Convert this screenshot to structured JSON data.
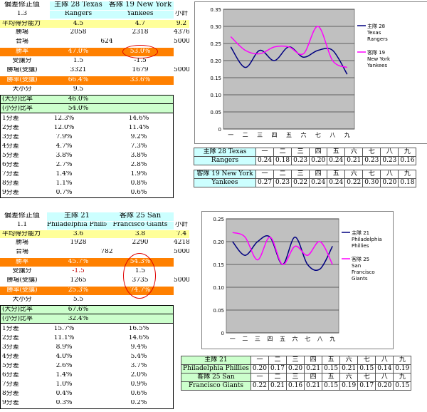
{
  "game1": {
    "header": {
      "label": "偏差修正值",
      "factor": "1.3",
      "home_label": "主隊 28 Texas",
      "home_name": "Rangers",
      "away_label": "客隊 19 New York",
      "away_name": "Yankees",
      "total_label": "小計"
    },
    "ability": {
      "label": "平均得分能力",
      "home": "4.5",
      "away": "4.7",
      "total": "9.2"
    },
    "wins": {
      "label": "勝場",
      "home": "2058",
      "away": "2318",
      "total": "4376"
    },
    "draws": {
      "label": "合場",
      "value": "624",
      "total": "5000"
    },
    "winrate": {
      "label": "勝率",
      "home": "47.0%",
      "away": "53.0%"
    },
    "handicap": {
      "label": "受讓分",
      "home": "1.5",
      "away": "-1.5"
    },
    "hc_wins": {
      "label": "勝場(受讓)",
      "home": "3321",
      "away": "1679",
      "total": "5000"
    },
    "hc_rate": {
      "label": "勝率(受讓)",
      "home": "66.4%",
      "away": "33.6%"
    },
    "ou": {
      "label": "大小分",
      "value": "9.5"
    },
    "over": {
      "label": "(大分)比率",
      "value": "46.0%"
    },
    "under": {
      "label": "(小分)比率",
      "value": "54.0%"
    },
    "diffs": [
      {
        "label": "1分差",
        "home": "12.3%",
        "away": "14.6%"
      },
      {
        "label": "2分差",
        "home": "12.0%",
        "away": "11.4%"
      },
      {
        "label": "3分差",
        "home": "7.9%",
        "away": "9.2%"
      },
      {
        "label": "4分差",
        "home": "4.7%",
        "away": "7.3%"
      },
      {
        "label": "5分差",
        "home": "3.8%",
        "away": "3.8%"
      },
      {
        "label": "6分差",
        "home": "2.7%",
        "away": "2.8%"
      },
      {
        "label": "7分差",
        "home": "1.4%",
        "away": "1.9%"
      },
      {
        "label": "8分差",
        "home": "1.1%",
        "away": "0.8%"
      },
      {
        "label": "9分差",
        "home": "0.7%",
        "away": "0.6%"
      }
    ],
    "innings_table": {
      "innings": [
        "一",
        "二",
        "三",
        "四",
        "五",
        "六",
        "七",
        "八",
        "九"
      ],
      "home_label": "主隊 28 Texas",
      "home_name": "Rangers",
      "home_values": [
        "0.24",
        "0.18",
        "0.23",
        "0.20",
        "0.24",
        "0.21",
        "0.23",
        "0.23",
        "0.16"
      ],
      "away_label": "客隊 19 New York",
      "away_name": "Yankees",
      "away_values": [
        "0.27",
        "0.23",
        "0.22",
        "0.24",
        "0.24",
        "0.22",
        "0.30",
        "0.20",
        "0.18"
      ]
    },
    "chart_data": {
      "type": "line",
      "categories": [
        "一",
        "二",
        "三",
        "四",
        "五",
        "六",
        "七",
        "八",
        "九"
      ],
      "ylim": [
        0,
        0.35
      ],
      "yticks": [
        "0",
        "0.05",
        "0.10",
        "0.15",
        "0.20",
        "0.25",
        "0.30",
        "0.35"
      ],
      "series": [
        {
          "name": "主隊 28 Texas Rangers",
          "legend": [
            "主隊 28",
            "Texas",
            "Rangers"
          ],
          "color": "#000080",
          "values": [
            0.24,
            0.18,
            0.23,
            0.2,
            0.24,
            0.21,
            0.23,
            0.23,
            0.16
          ]
        },
        {
          "name": "客隊 19 New York Yankees",
          "legend": [
            "客隊 19",
            "New York",
            "Yankees"
          ],
          "color": "#ff00ff",
          "values": [
            0.27,
            0.23,
            0.22,
            0.24,
            0.24,
            0.22,
            0.3,
            0.2,
            0.18
          ]
        }
      ]
    }
  },
  "game2": {
    "header": {
      "label": "偏差修正值",
      "factor": "1.1",
      "home_label": "主隊 21",
      "home_name": "Philadelphia Phillies",
      "away_label": "客隊 25 San",
      "away_name": "Francisco Giants",
      "total_label": "小計"
    },
    "ability": {
      "label": "平均得分能力",
      "home": "3.6",
      "away": "3.8",
      "total": "7.4"
    },
    "wins": {
      "label": "勝場",
      "home": "1928",
      "away": "2290",
      "total": "4218"
    },
    "draws": {
      "label": "合場",
      "value": "782",
      "total": "5000"
    },
    "winrate": {
      "label": "勝率",
      "home": "45.7%",
      "away": "54.3%"
    },
    "handicap": {
      "label": "受讓分",
      "home": "-1.5",
      "away": "1.5"
    },
    "hc_wins": {
      "label": "勝場(受讓)",
      "home": "1265",
      "away": "3735",
      "total": "5000"
    },
    "hc_rate": {
      "label": "勝率(受讓)",
      "home": "25.3%",
      "away": "74.7%"
    },
    "ou": {
      "label": "大小分",
      "value": "5.5"
    },
    "over": {
      "label": "(大分)比率",
      "value": "67.6%"
    },
    "under": {
      "label": "(小分)比率",
      "value": "32.4%"
    },
    "diffs": [
      {
        "label": "1分差",
        "home": "15.7%",
        "away": "16.5%"
      },
      {
        "label": "2分差",
        "home": "11.1%",
        "away": "14.6%"
      },
      {
        "label": "3分差",
        "home": "8.9%",
        "away": "9.4%"
      },
      {
        "label": "4分差",
        "home": "4.0%",
        "away": "5.4%"
      },
      {
        "label": "5分差",
        "home": "2.6%",
        "away": "3.7%"
      },
      {
        "label": "6分差",
        "home": "1.4%",
        "away": "2.0%"
      },
      {
        "label": "7分差",
        "home": "1.0%",
        "away": "0.9%"
      },
      {
        "label": "8分差",
        "home": "0.4%",
        "away": "0.6%"
      },
      {
        "label": "9分差",
        "home": "0.3%",
        "away": "0.2%"
      }
    ],
    "innings_table": {
      "innings": [
        "一",
        "二",
        "三",
        "四",
        "五",
        "六",
        "七",
        "八",
        "九"
      ],
      "home_label": "主隊 21",
      "home_name": "Philadelphia Phillies",
      "home_values": [
        "0.20",
        "0.17",
        "0.20",
        "0.21",
        "0.15",
        "0.21",
        "0.15",
        "0.14",
        "0.19"
      ],
      "away_label": "客隊 25 San",
      "away_name": "Francisco Giants",
      "away_values": [
        "0.22",
        "0.21",
        "0.16",
        "0.21",
        "0.15",
        "0.19",
        "0.17",
        "0.20",
        "0.15"
      ]
    },
    "chart_data": {
      "type": "line",
      "categories": [
        "一",
        "二",
        "三",
        "四",
        "五",
        "六",
        "七",
        "八",
        "九"
      ],
      "ylim": [
        0,
        0.25
      ],
      "yticks": [
        "0",
        "0.05",
        "0.10",
        "0.15",
        "0.20",
        "0.25"
      ],
      "series": [
        {
          "name": "主隊 21 Philadelphia Phillies",
          "legend": [
            "主隊 21",
            "Philadelphia",
            "Phillies"
          ],
          "color": "#000080",
          "values": [
            0.2,
            0.17,
            0.2,
            0.21,
            0.15,
            0.21,
            0.15,
            0.14,
            0.19
          ]
        },
        {
          "name": "客隊 25 San Francisco Giants",
          "legend": [
            "客隊 25",
            "San",
            "Francisco",
            "Giants"
          ],
          "color": "#ff00ff",
          "values": [
            0.22,
            0.21,
            0.16,
            0.21,
            0.15,
            0.19,
            0.17,
            0.2,
            0.15
          ]
        }
      ]
    }
  }
}
